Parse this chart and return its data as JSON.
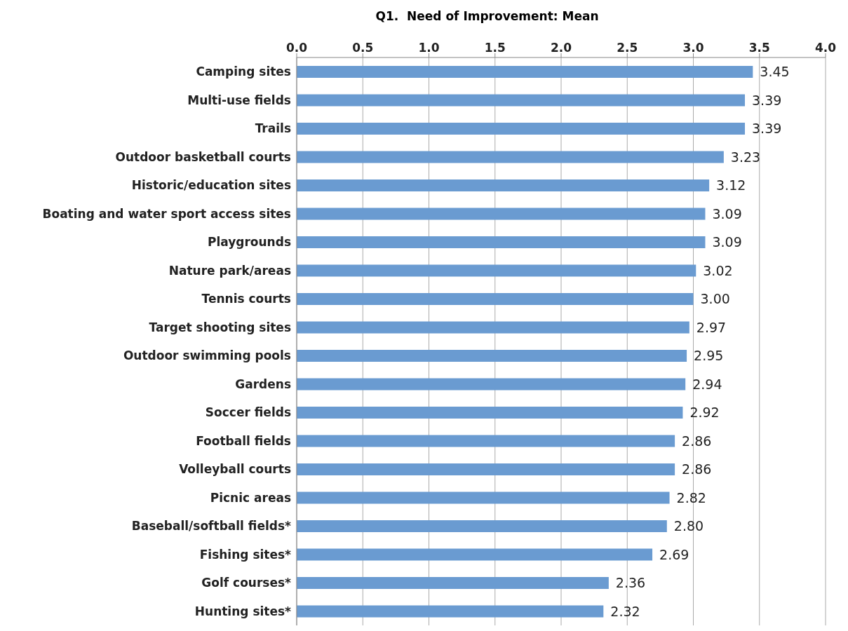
{
  "chart_data": {
    "type": "bar",
    "orientation": "horizontal",
    "title": "Q1.  Need of Improvement: Mean",
    "categories": [
      "Camping sites",
      "Multi-use fields",
      "Trails",
      "Outdoor basketball courts",
      "Historic/education sites",
      "Boating and water sport access sites",
      "Playgrounds",
      "Nature park/areas",
      "Tennis courts",
      "Target shooting sites",
      "Outdoor swimming pools",
      "Gardens",
      "Soccer fields",
      "Football fields",
      "Volleyball courts",
      "Picnic areas",
      "Baseball/softball fields*",
      "Fishing sites*",
      "Golf courses*",
      "Hunting sites*"
    ],
    "values": [
      3.45,
      3.39,
      3.39,
      3.23,
      3.12,
      3.09,
      3.09,
      3.02,
      3.0,
      2.97,
      2.95,
      2.94,
      2.92,
      2.86,
      2.86,
      2.82,
      2.8,
      2.69,
      2.36,
      2.32
    ],
    "value_labels": [
      "3.45",
      "3.39",
      "3.39",
      "3.23",
      "3.12",
      "3.09",
      "3.09",
      "3.02",
      "3.00",
      "2.97",
      "2.95",
      "2.94",
      "2.92",
      "2.86",
      "2.86",
      "2.82",
      "2.80",
      "2.69",
      "2.36",
      "2.32"
    ],
    "color": "#6a9bd1",
    "xlim": [
      0,
      4
    ],
    "xticks": [
      {
        "value": 0,
        "label": "0.0"
      },
      {
        "value": 0.5,
        "label": "0.5"
      },
      {
        "value": 1,
        "label": "1.0"
      },
      {
        "value": 1.5,
        "label": "1.5"
      },
      {
        "value": 2,
        "label": "2.0"
      },
      {
        "value": 2.5,
        "label": "2.5"
      },
      {
        "value": 3,
        "label": "3.0"
      },
      {
        "value": 3.5,
        "label": "3.5"
      },
      {
        "value": 4,
        "label": "4.0"
      }
    ],
    "grid": "x"
  }
}
